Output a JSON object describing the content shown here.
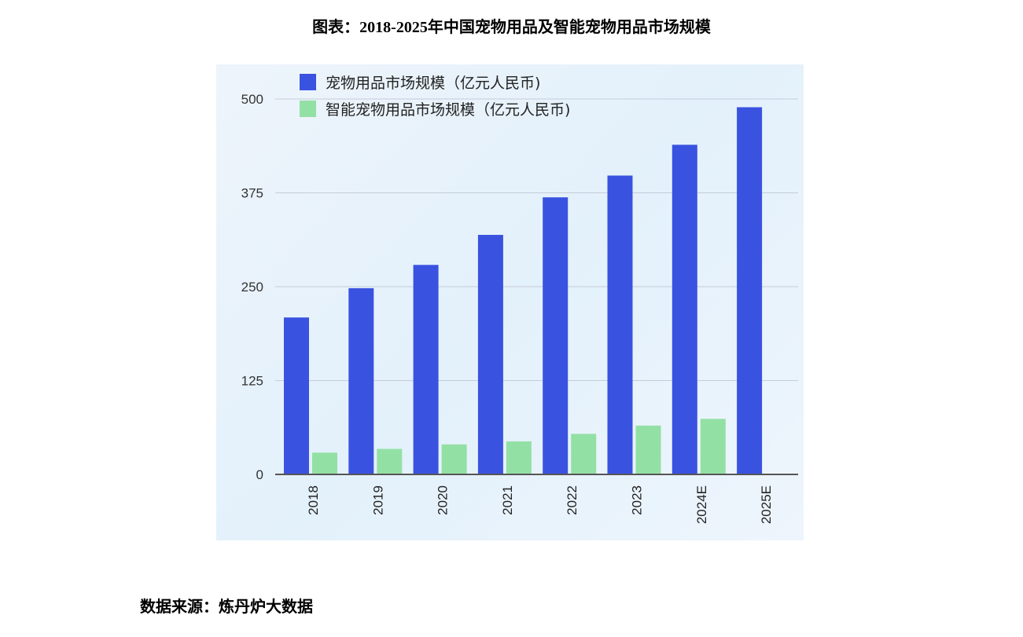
{
  "title": "图表：2018-2025年中国宠物用品及智能宠物用品市场规模",
  "source": "数据来源：炼丹炉大数据",
  "chart_data": {
    "type": "bar",
    "title": "图表：2018-2025年中国宠物用品及智能宠物用品市场规模",
    "categories": [
      "2018",
      "2019",
      "2020",
      "2021",
      "2022",
      "2023",
      "2024E",
      "2025E"
    ],
    "series": [
      {
        "name": "宠物用品市场规模（亿元人民币)",
        "color": "#3a52e0",
        "values": [
          209,
          248,
          279,
          319,
          369,
          398,
          439,
          489
        ]
      },
      {
        "name": "智能宠物用品市场规模（亿元人民币)",
        "color": "#93e0a5",
        "values": [
          29,
          34,
          40,
          44,
          54,
          65,
          74,
          null
        ]
      }
    ],
    "yticks": [
      0,
      125,
      250,
      375,
      500
    ],
    "ylim": [
      0,
      500
    ],
    "xlabel": "",
    "ylabel": "",
    "grid": true,
    "legend": "top-left"
  }
}
